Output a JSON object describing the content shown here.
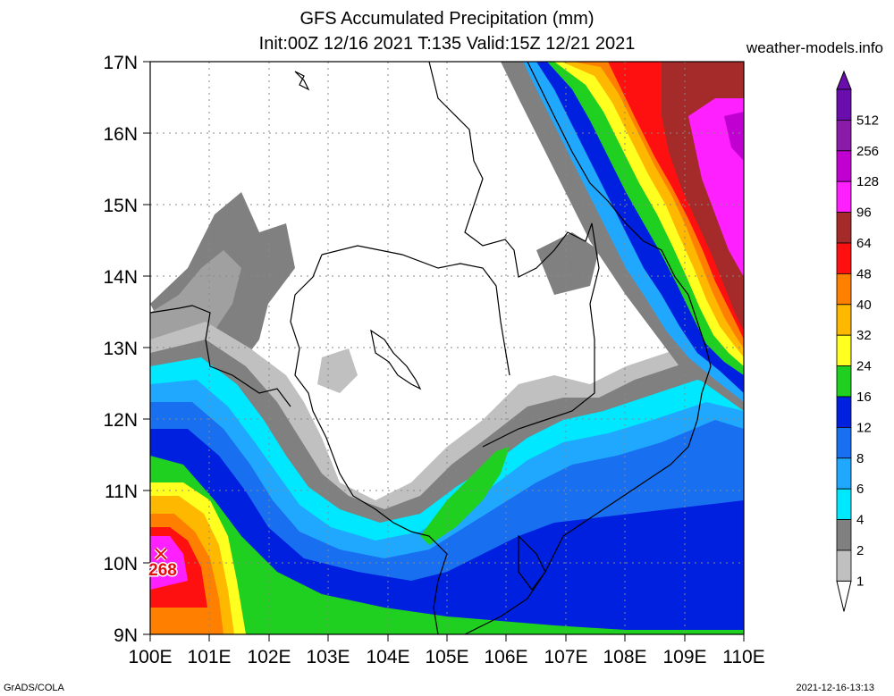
{
  "header": {
    "title_line1": "GFS Accumulated Precipitation (mm)",
    "title_line2": "Init:00Z 12/16 2021 T:135 Valid:15Z 12/21 2021",
    "site": "weather-models.info"
  },
  "axes": {
    "lat_labels": [
      "17N",
      "16N",
      "15N",
      "14N",
      "13N",
      "12N",
      "11N",
      "10N",
      "9N"
    ],
    "lon_labels": [
      "100E",
      "101E",
      "102E",
      "103E",
      "104E",
      "105E",
      "106E",
      "107E",
      "108E",
      "109E",
      "110E"
    ]
  },
  "legend": {
    "levels": [
      "512",
      "256",
      "128",
      "96",
      "64",
      "48",
      "40",
      "32",
      "24",
      "16",
      "12",
      "8",
      "6",
      "4",
      "2",
      "1"
    ],
    "colors": [
      "#6a0dad",
      "#8a1aa8",
      "#c000d0",
      "#ff20ff",
      "#a52a2a",
      "#ff1010",
      "#ff8000",
      "#ffb800",
      "#ffff20",
      "#20d020",
      "#0020e0",
      "#1870f0",
      "#20a8ff",
      "#00e8ff",
      "#808080",
      "#c0c0c0"
    ]
  },
  "marker": {
    "label": "268"
  },
  "footer": {
    "left": "GrADS/COLA",
    "right": "2021-12-16-13:13"
  }
}
